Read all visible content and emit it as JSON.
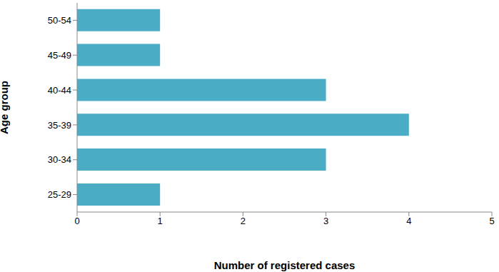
{
  "chart_data": {
    "type": "bar",
    "orientation": "horizontal",
    "x_label": "Number of registered cases",
    "y_label": "Age group",
    "categories": [
      "25-29",
      "30-34",
      "35-39",
      "40-44",
      "45-49",
      "50-54"
    ],
    "values": [
      1,
      3,
      4,
      3,
      1,
      1
    ],
    "color": "#4bacc6",
    "xlim": [
      0,
      5
    ],
    "xticks": [
      0,
      1,
      2,
      3,
      4,
      5
    ],
    "grid": false
  }
}
